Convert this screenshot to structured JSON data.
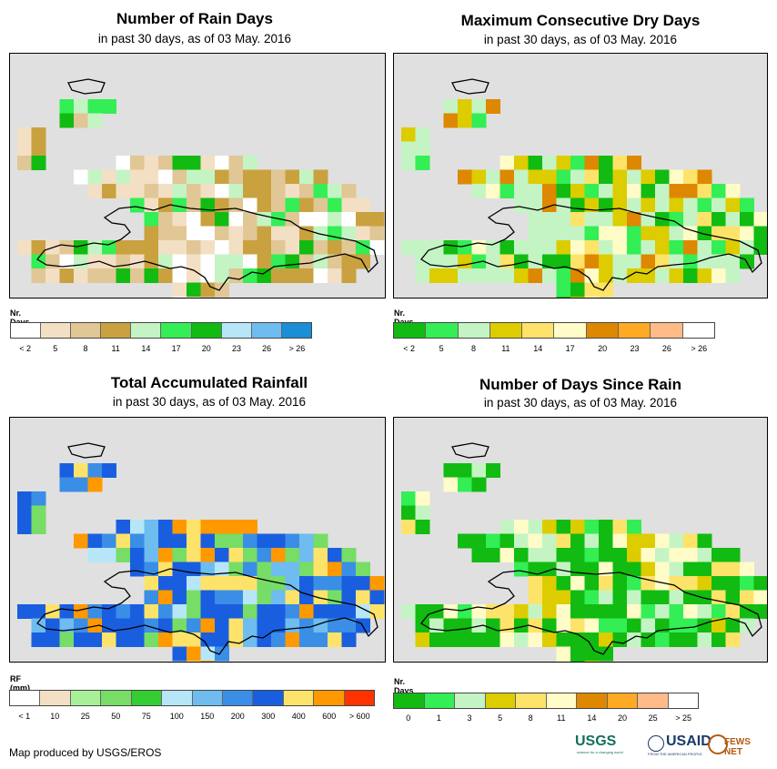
{
  "panels": [
    {
      "id": "rain-days",
      "title": "Number of Rain Days",
      "subtitle": "in past 30 days, as of 03 May. 2016",
      "legend_title": "Nr. Days",
      "legend_colors": [
        "#ffffff",
        "#f3dfc4",
        "#e0c795",
        "#c9a23f",
        "#c4f4c4",
        "#33ee55",
        "#11bb11",
        "#b6e6f8",
        "#6ebcf0",
        "#1a8ed6"
      ],
      "legend_ticks": [
        "< 2",
        "5",
        "8",
        "11",
        "14",
        "17",
        "20",
        "23",
        "26",
        "> 26"
      ]
    },
    {
      "id": "max-dry-days",
      "title": "Maximum Consecutive Dry Days",
      "subtitle": "in past 30 days, as of 03 May. 2016",
      "legend_title": "Nr. Days",
      "legend_colors": [
        "#11bb11",
        "#33ee55",
        "#c4f4c4",
        "#ddcc00",
        "#fde36a",
        "#fffcc8",
        "#dd8800",
        "#ffaa22",
        "#ffbb88",
        "#ffffff"
      ],
      "legend_ticks": [
        "< 2",
        "5",
        "8",
        "11",
        "14",
        "17",
        "20",
        "23",
        "26",
        "> 26"
      ]
    },
    {
      "id": "total-rainfall",
      "title": "Total Accumulated Rainfall",
      "subtitle": "in past 30 days, as of 03 May. 2016",
      "legend_title": "RF (mm)",
      "legend_colors": [
        "#ffffff",
        "#f3dfc4",
        "#a8f098",
        "#77dd66",
        "#33cc33",
        "#b6e6f8",
        "#6ebcf0",
        "#3a8ee6",
        "#1a5ee0",
        "#fde36a",
        "#ff9900",
        "#ff3300"
      ],
      "legend_ticks": [
        "< 1",
        "10",
        "25",
        "50",
        "75",
        "100",
        "150",
        "200",
        "300",
        "400",
        "600",
        "> 600"
      ]
    },
    {
      "id": "days-since-rain",
      "title": "Number of Days Since Rain",
      "subtitle": "in past 30 days, as of 03 May. 2016",
      "legend_title": "Nr. Days",
      "legend_colors": [
        "#11bb11",
        "#33ee55",
        "#c4f4c4",
        "#ddcc00",
        "#fde36a",
        "#fffcc8",
        "#dd8800",
        "#ffaa22",
        "#ffbb88",
        "#ffffff"
      ],
      "legend_ticks": [
        "0",
        "1",
        "3",
        "5",
        "8",
        "11",
        "14",
        "20",
        "25",
        "> 25"
      ]
    }
  ],
  "footer": "Map produced by USGS/EROS",
  "logos": {
    "usgs": "USGS",
    "usgs_tagline": "science for a changing world",
    "usaid": "USAID",
    "usaid_tagline": "FROM THE AMERICAN PEOPLE",
    "fews": "FEWS NET"
  }
}
